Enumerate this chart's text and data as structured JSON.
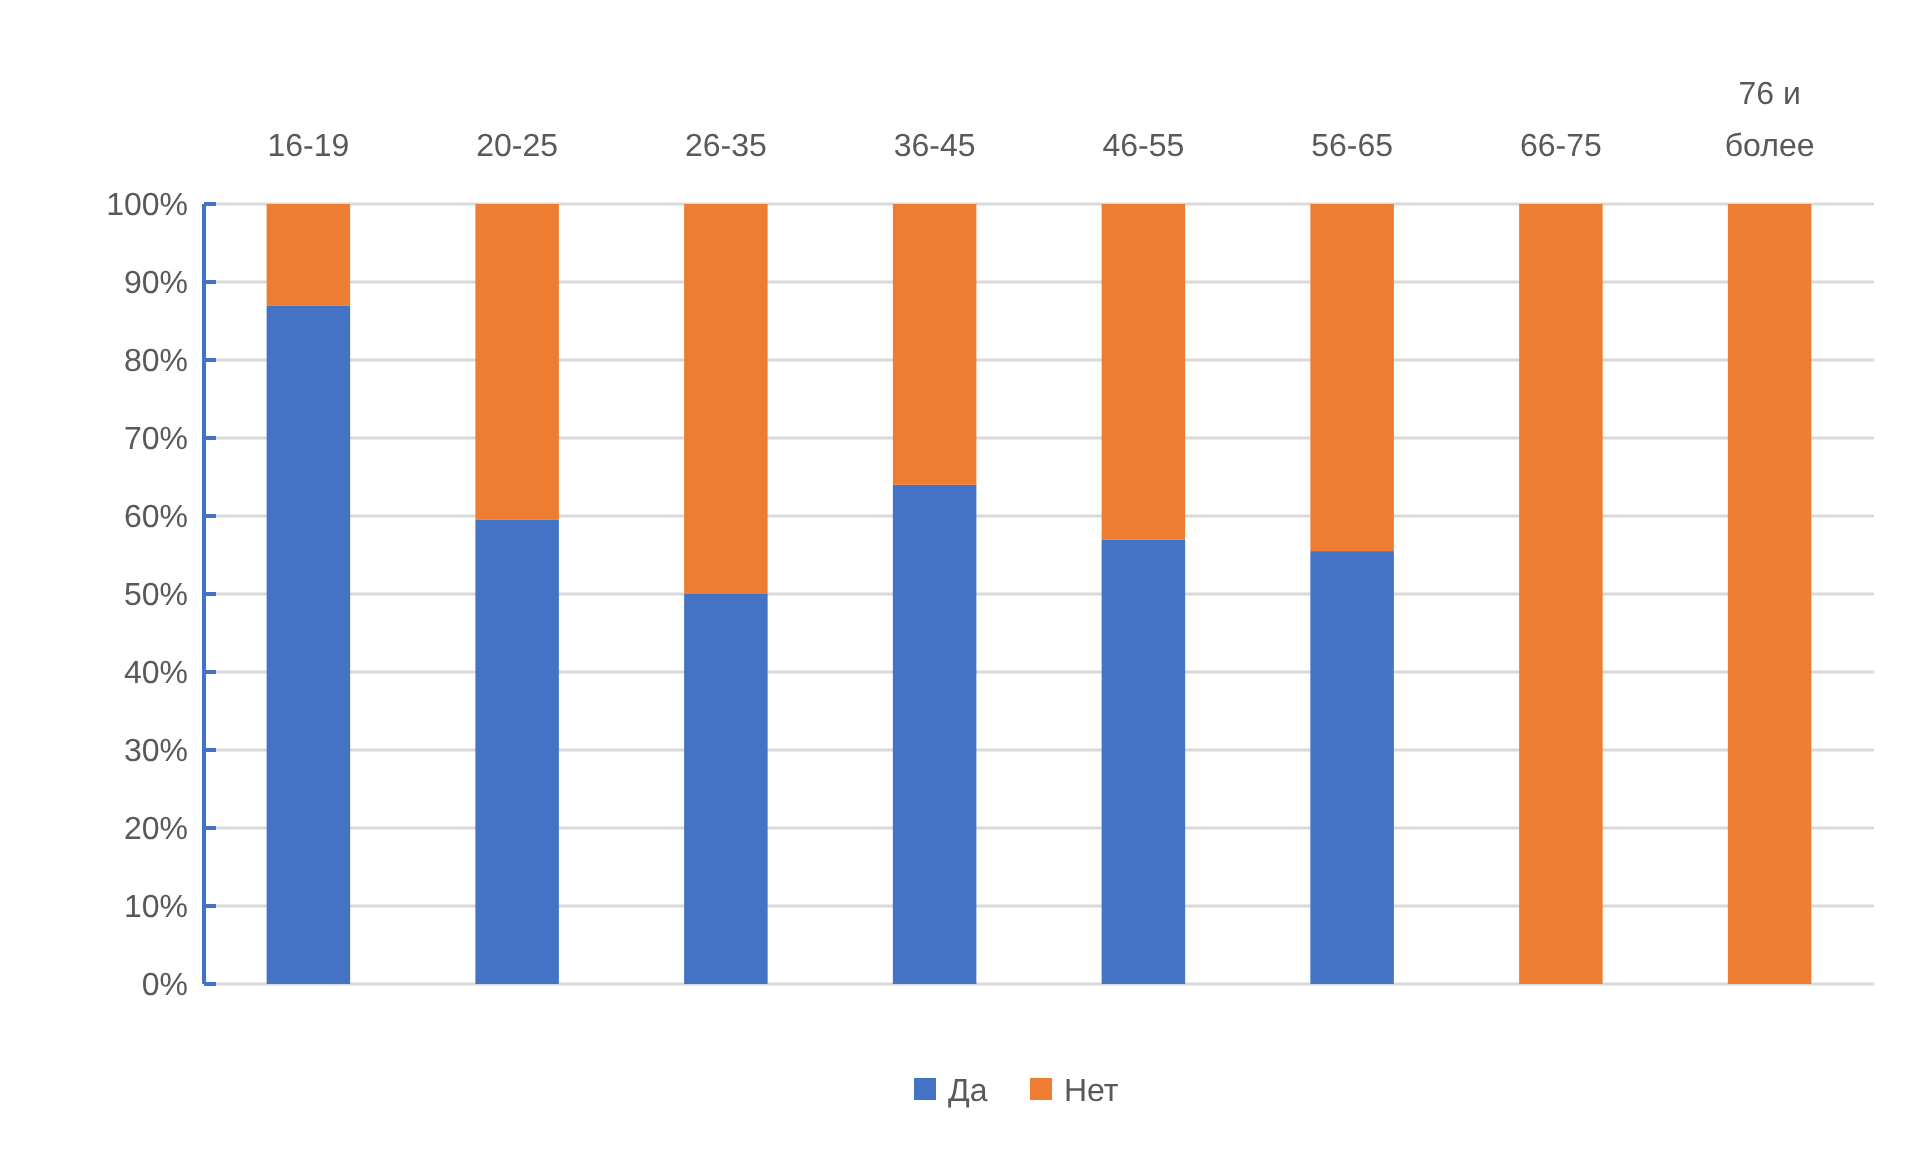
{
  "chart_data": {
    "type": "bar",
    "stacked": true,
    "categories": [
      "16-19",
      "20-25",
      "26-35",
      "36-45",
      "46-55",
      "56-65",
      "66-75",
      "76 и более"
    ],
    "series": [
      {
        "name": "Да",
        "color": "#4472c4",
        "values": [
          87,
          59.5,
          50,
          64,
          57,
          55.5,
          0,
          0
        ]
      },
      {
        "name": "Нет",
        "color": "#ed7d31",
        "values": [
          13,
          40.5,
          50,
          36,
          43,
          44.5,
          100,
          100
        ]
      }
    ],
    "ylim": [
      0,
      100
    ],
    "yticks": [
      {
        "value": 0,
        "label": "0%"
      },
      {
        "value": 10,
        "label": "10%"
      },
      {
        "value": 20,
        "label": "20%"
      },
      {
        "value": 30,
        "label": "30%"
      },
      {
        "value": 40,
        "label": "40%"
      },
      {
        "value": 50,
        "label": "50%"
      },
      {
        "value": 60,
        "label": "60%"
      },
      {
        "value": 70,
        "label": "70%"
      },
      {
        "value": 80,
        "label": "80%"
      },
      {
        "value": 90,
        "label": "90%"
      },
      {
        "value": 100,
        "label": "100%"
      }
    ],
    "grid": "y",
    "legend": "bottom"
  }
}
